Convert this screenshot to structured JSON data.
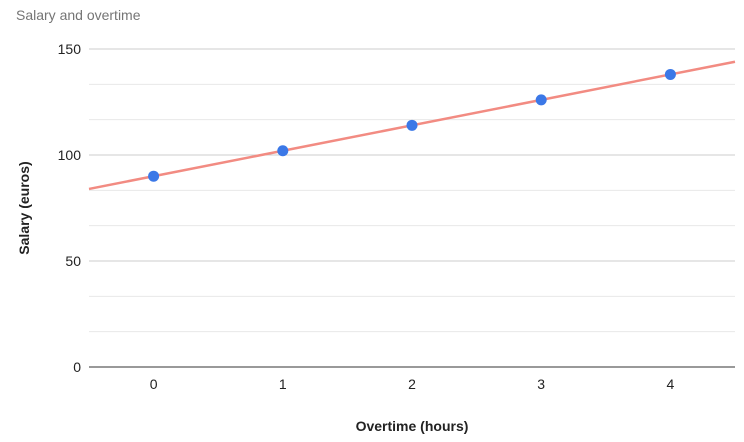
{
  "chart_data": {
    "type": "scatter",
    "title": "Salary and overtime",
    "xlabel": "Overtime (hours)",
    "ylabel": "Salary (euros)",
    "x": [
      0,
      1,
      2,
      3,
      4
    ],
    "y": [
      90,
      102,
      114,
      126,
      138
    ],
    "x_ticks": [
      0,
      1,
      2,
      3,
      4
    ],
    "y_ticks": [
      0,
      50,
      100,
      150
    ],
    "xlim": [
      -0.5,
      4.5
    ],
    "ylim": [
      0,
      150
    ],
    "trendline": {
      "type": "linear",
      "intercept": 90,
      "slope": 12,
      "color": "#f28b82"
    },
    "point_color": "#3b78e7",
    "grid": true,
    "legend": "none"
  }
}
